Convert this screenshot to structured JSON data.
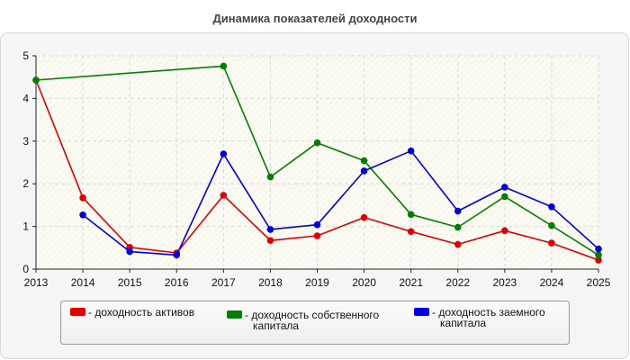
{
  "chart_data": {
    "type": "line",
    "title": "Динамика показателей доходности",
    "xlabel": "",
    "ylabel": "",
    "x": [
      "2013",
      "2014",
      "2015",
      "2016",
      "2017",
      "2018",
      "2019",
      "2020",
      "2021",
      "2022",
      "2023",
      "2024",
      "2025"
    ],
    "y_ticks": [
      "0",
      "1",
      "2",
      "3",
      "4",
      "5"
    ],
    "ylim": [
      0,
      5
    ],
    "grid": true,
    "legend_position": "bottom",
    "series": [
      {
        "name": "- доходность активов",
        "color": "#e00000",
        "values": [
          4.43,
          1.67,
          0.51,
          0.38,
          1.73,
          0.67,
          0.78,
          1.21,
          0.88,
          0.58,
          0.9,
          0.61,
          0.21
        ]
      },
      {
        "name": "- доходность собственного капитала",
        "name_lines": [
          "- доходность собственного",
          "капитала"
        ],
        "color": "#008000",
        "values": [
          4.43,
          null,
          null,
          null,
          4.76,
          2.16,
          2.96,
          2.54,
          1.28,
          0.98,
          1.7,
          1.02,
          0.33
        ]
      },
      {
        "name": "- доходность заемного капитала",
        "name_lines": [
          "- доходность заемного",
          "капитала"
        ],
        "color": "#0000e0",
        "values": [
          null,
          1.27,
          0.41,
          0.33,
          2.7,
          0.93,
          1.04,
          2.3,
          2.77,
          1.36,
          1.92,
          1.46,
          0.47
        ]
      }
    ]
  }
}
